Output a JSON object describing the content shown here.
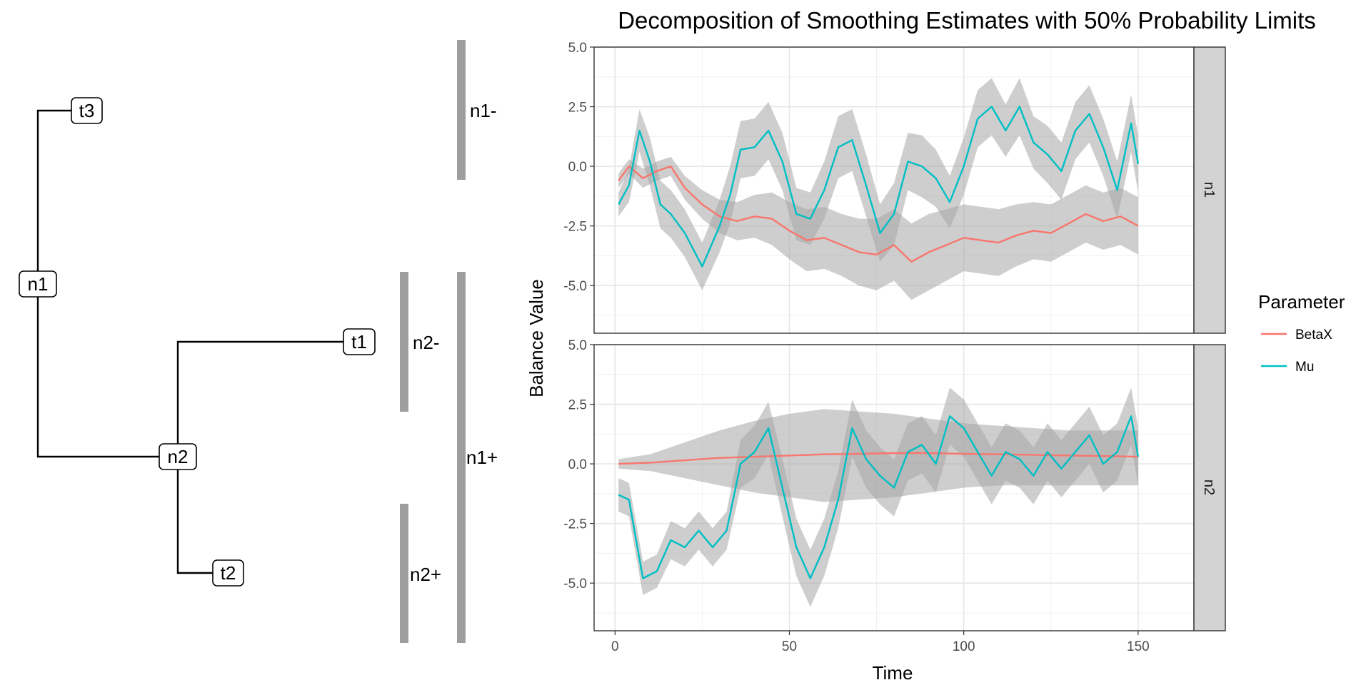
{
  "tree": {
    "nodes": [
      {
        "id": "t3",
        "label": "t3"
      },
      {
        "id": "n1",
        "label": "n1"
      },
      {
        "id": "t1",
        "label": "t1"
      },
      {
        "id": "n2",
        "label": "n2"
      },
      {
        "id": "t2",
        "label": "t2"
      }
    ],
    "brackets": [
      {
        "id": "n1-",
        "label": "n1-"
      },
      {
        "id": "n2-",
        "label": "n2-"
      },
      {
        "id": "n1+",
        "label": "n1+"
      },
      {
        "id": "n2+",
        "label": "n2+"
      }
    ]
  },
  "chart_data": {
    "type": "line",
    "title": "Decomposition of Smoothing Estimates with 50% Probability Limits",
    "xlabel": "Time",
    "ylabel": "Balance Value",
    "xlim": [
      -6,
      166
    ],
    "ylim": [
      -7,
      5
    ],
    "x_ticks": [
      0,
      50,
      100,
      150
    ],
    "x_tick_labels": [
      "0",
      "50",
      "100",
      "150"
    ],
    "y_ticks": [
      5,
      2.5,
      0,
      -2.5,
      -5
    ],
    "y_tick_labels": [
      "5.0",
      "2.5",
      "0.0",
      "-2.5",
      "-5.0"
    ],
    "grid": true,
    "legend": {
      "title": "Parameter",
      "position": "right"
    },
    "band_color": "#a6a6a6",
    "series_style": [
      {
        "name": "BetaX",
        "color": "#F8766D"
      },
      {
        "name": "Mu",
        "color": "#00BFC4"
      }
    ],
    "panels": [
      {
        "strip": "n1",
        "series": [
          {
            "name": "BetaX",
            "x": [
              1,
              4,
              8,
              12,
              16,
              20,
              25,
              30,
              35,
              40,
              45,
              50,
              55,
              60,
              65,
              70,
              75,
              80,
              85,
              90,
              95,
              100,
              105,
              110,
              115,
              120,
              125,
              130,
              135,
              140,
              145,
              150
            ],
            "values": [
              -0.6,
              0,
              -0.5,
              -0.2,
              0,
              -0.9,
              -1.6,
              -2.1,
              -2.3,
              -2.1,
              -2.2,
              -2.7,
              -3.1,
              -3.0,
              -3.3,
              -3.6,
              -3.7,
              -3.3,
              -4.0,
              -3.6,
              -3.3,
              -3.0,
              -3.1,
              -3.2,
              -2.9,
              -2.7,
              -2.8,
              -2.4,
              -2.0,
              -2.3,
              -2.1,
              -2.5
            ],
            "lower": [
              -0.9,
              -0.3,
              -0.9,
              -0.6,
              -0.4,
              -1.4,
              -2.2,
              -2.8,
              -3.1,
              -3.0,
              -3.3,
              -3.9,
              -4.4,
              -4.3,
              -4.6,
              -5.0,
              -5.2,
              -4.8,
              -5.6,
              -5.2,
              -4.8,
              -4.4,
              -4.5,
              -4.6,
              -4.2,
              -3.9,
              -4.0,
              -3.6,
              -3.2,
              -3.5,
              -3.3,
              -3.7
            ],
            "upper": [
              -0.3,
              0.3,
              -0.1,
              0.2,
              0.4,
              -0.4,
              -1.0,
              -1.4,
              -1.5,
              -1.2,
              -1.1,
              -1.5,
              -1.8,
              -1.7,
              -2.0,
              -2.2,
              -2.2,
              -1.8,
              -2.4,
              -2.0,
              -1.8,
              -1.6,
              -1.7,
              -1.8,
              -1.6,
              -1.5,
              -1.6,
              -1.2,
              -0.8,
              -1.1,
              -0.9,
              -1.3
            ]
          },
          {
            "name": "Mu",
            "x": [
              1,
              4,
              7,
              10,
              13,
              16,
              20,
              25,
              30,
              33,
              36,
              40,
              44,
              48,
              52,
              56,
              60,
              64,
              68,
              72,
              76,
              80,
              84,
              88,
              92,
              96,
              100,
              104,
              108,
              112,
              116,
              120,
              124,
              128,
              132,
              136,
              140,
              144,
              148,
              150
            ],
            "values": [
              -1.6,
              -0.8,
              1.5,
              0.2,
              -1.6,
              -2.0,
              -2.8,
              -4.2,
              -2.5,
              -1.2,
              0.7,
              0.8,
              1.5,
              0.2,
              -2.0,
              -2.2,
              -1.0,
              0.8,
              1.1,
              -0.8,
              -2.8,
              -2.0,
              0.2,
              0.0,
              -0.5,
              -1.5,
              0.0,
              2.0,
              2.5,
              1.5,
              2.5,
              1.0,
              0.5,
              -0.2,
              1.5,
              2.2,
              0.8,
              -1.0,
              1.8,
              0.1
            ],
            "lower": [
              -2.1,
              -1.5,
              0.6,
              -0.8,
              -2.6,
              -3.0,
              -3.8,
              -5.2,
              -3.6,
              -2.4,
              -0.5,
              -0.4,
              0.3,
              -1.0,
              -3.1,
              -3.3,
              -2.2,
              -0.5,
              -0.2,
              -2.1,
              -4.0,
              -3.3,
              -1.0,
              -1.3,
              -1.7,
              -2.6,
              -1.2,
              0.8,
              1.3,
              0.4,
              1.3,
              -0.1,
              -0.7,
              -1.4,
              0.3,
              1.0,
              -0.4,
              -2.2,
              0.6,
              -1.1
            ],
            "upper": [
              -1.1,
              -0.1,
              2.4,
              1.2,
              -0.6,
              -1.0,
              -1.8,
              -3.2,
              -1.4,
              0.0,
              1.9,
              2.0,
              2.7,
              1.4,
              -0.9,
              -1.1,
              0.2,
              2.1,
              2.4,
              0.5,
              -1.6,
              -0.7,
              1.4,
              1.3,
              0.7,
              -0.4,
              1.2,
              3.2,
              3.7,
              2.6,
              3.7,
              2.1,
              1.7,
              1.0,
              2.7,
              3.4,
              2.0,
              0.2,
              3.0,
              1.3
            ]
          }
        ]
      },
      {
        "strip": "n2",
        "series": [
          {
            "name": "BetaX",
            "x": [
              1,
              10,
              20,
              30,
              40,
              50,
              60,
              70,
              80,
              90,
              100,
              110,
              120,
              130,
              140,
              150
            ],
            "values": [
              0.0,
              0.05,
              0.15,
              0.25,
              0.3,
              0.35,
              0.4,
              0.42,
              0.45,
              0.45,
              0.42,
              0.4,
              0.38,
              0.35,
              0.33,
              0.3
            ],
            "lower": [
              -0.2,
              -0.3,
              -0.6,
              -0.9,
              -1.2,
              -1.4,
              -1.6,
              -1.5,
              -1.4,
              -1.2,
              -1.0,
              -0.9,
              -0.9,
              -0.9,
              -0.9,
              -0.9
            ],
            "upper": [
              0.2,
              0.4,
              0.9,
              1.4,
              1.8,
              2.1,
              2.3,
              2.2,
              2.1,
              1.9,
              1.7,
              1.6,
              1.5,
              1.4,
              1.4,
              1.4
            ]
          },
          {
            "name": "Mu",
            "x": [
              1,
              4,
              8,
              12,
              16,
              20,
              24,
              28,
              32,
              36,
              40,
              44,
              48,
              52,
              56,
              60,
              64,
              68,
              72,
              76,
              80,
              84,
              88,
              92,
              96,
              100,
              104,
              108,
              112,
              116,
              120,
              124,
              128,
              132,
              136,
              140,
              144,
              148,
              150
            ],
            "values": [
              -1.3,
              -1.5,
              -4.8,
              -4.5,
              -3.2,
              -3.5,
              -2.8,
              -3.5,
              -2.8,
              0.0,
              0.5,
              1.5,
              -1.0,
              -3.5,
              -4.8,
              -3.5,
              -1.5,
              1.5,
              0.2,
              -0.5,
              -1.0,
              0.5,
              0.8,
              0.0,
              2.0,
              1.5,
              0.5,
              -0.5,
              0.5,
              0.2,
              -0.5,
              0.5,
              -0.2,
              0.5,
              1.2,
              0.0,
              0.5,
              2.0,
              0.3
            ],
            "lower": [
              -2.0,
              -2.2,
              -5.5,
              -5.2,
              -4.0,
              -4.3,
              -3.6,
              -4.3,
              -3.6,
              -1.0,
              -0.6,
              0.4,
              -2.2,
              -4.7,
              -6.0,
              -4.7,
              -2.7,
              0.3,
              -1.0,
              -1.7,
              -2.2,
              -0.7,
              -0.4,
              -1.2,
              0.8,
              0.3,
              -0.7,
              -1.7,
              -0.7,
              -1.0,
              -1.7,
              -0.7,
              -1.4,
              -0.7,
              0.0,
              -1.2,
              -0.7,
              0.8,
              -0.9
            ],
            "upper": [
              -0.6,
              -0.8,
              -4.1,
              -3.8,
              -2.4,
              -2.7,
              -2.0,
              -2.7,
              -2.0,
              1.0,
              1.6,
              2.6,
              0.2,
              -2.3,
              -3.6,
              -2.3,
              -0.3,
              2.7,
              1.4,
              0.7,
              0.2,
              1.7,
              2.0,
              1.2,
              3.2,
              2.7,
              1.7,
              0.7,
              1.7,
              1.4,
              0.7,
              1.7,
              1.0,
              1.7,
              2.4,
              1.2,
              1.7,
              3.2,
              1.5
            ]
          }
        ]
      }
    ]
  }
}
